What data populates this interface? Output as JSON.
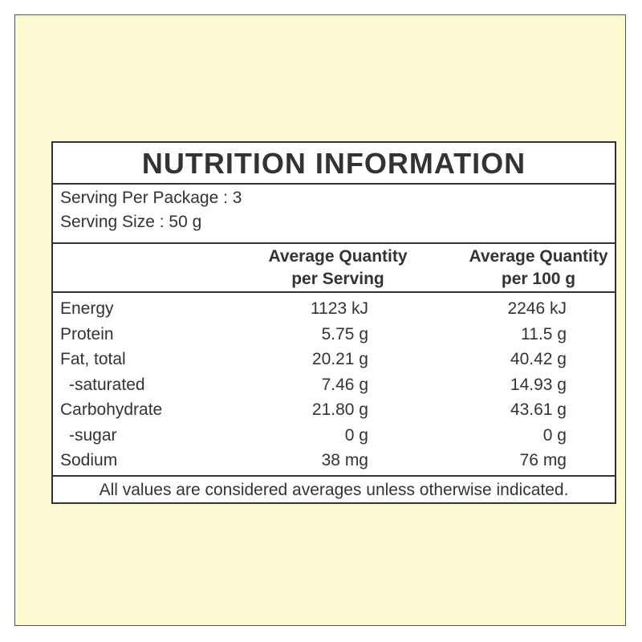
{
  "label": {
    "title": "NUTRITION INFORMATION",
    "serving_per_package": "Serving Per Package : 3",
    "serving_size": "Serving Size : 50 g",
    "columns": {
      "per_serving_line1": "Average Quantity",
      "per_serving_line2": "per Serving",
      "per_100g_line1": "Average Quantity",
      "per_100g_line2": "per 100 g"
    },
    "rows": [
      {
        "name": "Energy",
        "per_serving": "1123 kJ",
        "per_100g": "2246 kJ"
      },
      {
        "name": "Protein",
        "per_serving": "5.75 g",
        "per_100g": "11.5 g"
      },
      {
        "name": "Fat, total",
        "per_serving": "20.21 g",
        "per_100g": "40.42 g"
      },
      {
        "name": "-saturated",
        "per_serving": "7.46 g",
        "per_100g": "14.93 g"
      },
      {
        "name": "Carbohydrate",
        "per_serving": "21.80 g",
        "per_100g": "43.61 g"
      },
      {
        "name": "-sugar",
        "per_serving": "0 g",
        "per_100g": "0 g"
      },
      {
        "name": "Sodium",
        "per_serving": "38 mg",
        "per_100g": "76 mg"
      }
    ],
    "footer": "All values are considered averages unless otherwise indicated."
  },
  "colors": {
    "background": "#fbfad0",
    "panel": "#ffffff",
    "text": "#333333"
  }
}
